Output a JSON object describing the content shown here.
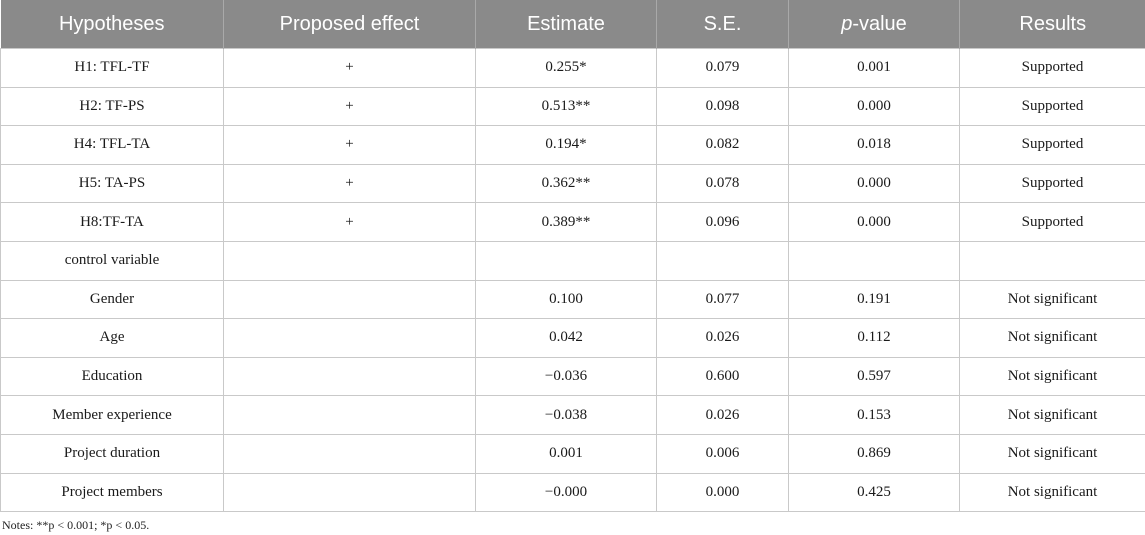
{
  "headers": [
    "Hypotheses",
    "Proposed effect",
    "Estimate",
    "S.E.",
    "p-value",
    "Results"
  ],
  "rows": [
    [
      "H1: TFL-TF",
      "+",
      "0.255*",
      "0.079",
      "0.001",
      "Supported"
    ],
    [
      "H2: TF-PS",
      "+",
      "0.513**",
      "0.098",
      "0.000",
      "Supported"
    ],
    [
      "H4: TFL-TA",
      "+",
      "0.194*",
      "0.082",
      "0.018",
      "Supported"
    ],
    [
      "H5: TA-PS",
      "+",
      "0.362**",
      "0.078",
      "0.000",
      "Supported"
    ],
    [
      "H8:TF-TA",
      "+",
      "0.389**",
      "0.096",
      "0.000",
      "Supported"
    ],
    [
      "control variable",
      "",
      "",
      "",
      "",
      ""
    ],
    [
      "Gender",
      "",
      "0.100",
      "0.077",
      "0.191",
      "Not significant"
    ],
    [
      "Age",
      "",
      "0.042",
      "0.026",
      "0.112",
      "Not significant"
    ],
    [
      "Education",
      "",
      "−0.036",
      "0.600",
      "0.597",
      "Not significant"
    ],
    [
      "Member experience",
      "",
      "−0.038",
      "0.026",
      "0.153",
      "Not significant"
    ],
    [
      "Project duration",
      "",
      "0.001",
      "0.006",
      "0.869",
      "Not significant"
    ],
    [
      "Project members",
      "",
      "−0.000",
      "0.000",
      "0.425",
      "Not significant"
    ]
  ],
  "notes": "Notes: **p < 0.001; *p < 0.05."
}
